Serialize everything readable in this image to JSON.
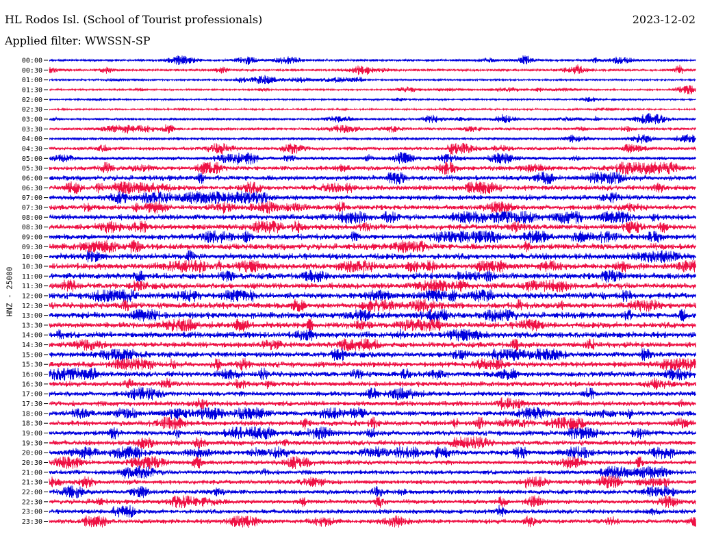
{
  "header": {
    "station": "HL Rodos Isl. (School of Tourist professionals)",
    "date": "2023-12-02",
    "filter": "Applied filter: WWSSN-SP"
  },
  "chart_data": {
    "type": "line",
    "title": "HL Rodos Isl. (School of Tourist professionals)",
    "ylabel": "HNZ - 25000",
    "row_labels": [
      "00:00",
      "00:30",
      "01:00",
      "01:30",
      "02:00",
      "02:30",
      "03:00",
      "03:30",
      "04:00",
      "04:30",
      "05:00",
      "05:30",
      "06:00",
      "06:30",
      "07:00",
      "07:30",
      "08:00",
      "08:30",
      "09:00",
      "09:30",
      "10:00",
      "10:30",
      "11:00",
      "11:30",
      "12:00",
      "12:30",
      "13:00",
      "13:30",
      "14:00",
      "14:30",
      "15:00",
      "15:30",
      "16:00",
      "16:30",
      "17:00",
      "17:30",
      "18:00",
      "18:30",
      "19:00",
      "19:30",
      "20:00",
      "20:30",
      "21:00",
      "21:30",
      "22:00",
      "22:30",
      "23:00",
      "23:30"
    ],
    "row_noise_level": [
      2,
      2,
      1.5,
      1.5,
      1.5,
      1.5,
      2,
      2.5,
      2.5,
      3,
      3,
      4,
      4.5,
      4.5,
      4.5,
      4.5,
      5,
      5,
      5,
      5.5,
      5.5,
      5.5,
      5.5,
      5.5,
      5.5,
      5.5,
      5.5,
      5.5,
      5.5,
      5,
      5,
      5,
      5,
      4.5,
      4.5,
      4.5,
      4.5,
      4.5,
      4.5,
      4.5,
      4.5,
      4,
      4,
      4,
      4,
      4,
      4,
      4
    ],
    "series_colors": [
      "#0000dd",
      "#ee1144"
    ],
    "grid": false
  }
}
